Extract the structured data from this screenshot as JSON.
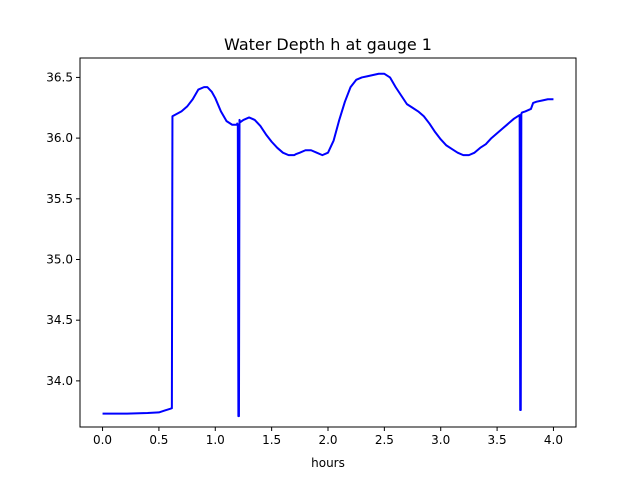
{
  "chart_data": {
    "type": "line",
    "title": "Water Depth h at gauge 1",
    "xlabel": "hours",
    "ylabel": "",
    "xlim": [
      -0.2,
      4.2
    ],
    "ylim": [
      33.62,
      36.66
    ],
    "xticks": [
      0.0,
      0.5,
      1.0,
      1.5,
      2.0,
      2.5,
      3.0,
      3.5,
      4.0
    ],
    "xtick_labels": [
      "0.0",
      "0.5",
      "1.0",
      "1.5",
      "2.0",
      "2.5",
      "3.0",
      "3.5",
      "4.0"
    ],
    "yticks": [
      34.0,
      34.5,
      35.0,
      35.5,
      36.0,
      36.5
    ],
    "ytick_labels": [
      "34.0",
      "34.5",
      "35.0",
      "35.5",
      "36.0",
      "36.5"
    ],
    "grid": false,
    "line_color": "#0000ff",
    "series": [
      {
        "x": [
          0.0,
          0.2,
          0.4,
          0.5,
          0.55,
          0.6,
          0.615,
          0.62,
          0.7,
          0.75,
          0.8,
          0.85,
          0.9,
          0.93,
          0.97,
          1.0,
          1.05,
          1.1,
          1.15,
          1.19,
          1.195,
          1.2,
          1.205,
          1.21,
          1.215,
          1.22,
          1.25,
          1.3,
          1.35,
          1.4,
          1.45,
          1.5,
          1.55,
          1.6,
          1.65,
          1.7,
          1.72,
          1.75,
          1.8,
          1.85,
          1.9,
          1.95,
          2.0,
          2.05,
          2.1,
          2.15,
          2.2,
          2.25,
          2.3,
          2.35,
          2.4,
          2.45,
          2.5,
          2.55,
          2.6,
          2.65,
          2.7,
          2.75,
          2.8,
          2.85,
          2.9,
          2.95,
          3.0,
          3.05,
          3.1,
          3.15,
          3.2,
          3.25,
          3.3,
          3.35,
          3.4,
          3.45,
          3.5,
          3.55,
          3.6,
          3.65,
          3.7,
          3.705,
          3.71,
          3.715,
          3.72,
          3.75,
          3.8,
          3.82,
          3.85,
          3.9,
          3.95,
          4.0
        ],
        "y": [
          33.73,
          33.73,
          33.735,
          33.74,
          33.755,
          33.77,
          33.775,
          36.18,
          36.22,
          36.26,
          36.32,
          36.4,
          36.42,
          36.42,
          36.38,
          36.33,
          36.22,
          36.14,
          36.11,
          36.11,
          36.12,
          36.11,
          33.71,
          33.71,
          36.15,
          36.13,
          36.15,
          36.17,
          36.15,
          36.1,
          36.03,
          35.97,
          35.92,
          35.88,
          35.86,
          35.86,
          35.87,
          35.88,
          35.9,
          35.9,
          35.88,
          35.86,
          35.88,
          35.98,
          36.15,
          36.3,
          36.42,
          36.48,
          36.5,
          36.51,
          36.52,
          36.53,
          36.53,
          36.5,
          36.42,
          36.35,
          36.28,
          36.25,
          36.22,
          36.18,
          36.12,
          36.05,
          35.99,
          35.94,
          35.91,
          35.88,
          35.86,
          35.86,
          35.88,
          35.92,
          35.95,
          36.0,
          36.04,
          36.08,
          36.12,
          36.16,
          36.19,
          33.76,
          33.76,
          36.2,
          36.21,
          36.22,
          36.24,
          36.29,
          36.3,
          36.31,
          36.32,
          36.32
        ]
      }
    ]
  }
}
